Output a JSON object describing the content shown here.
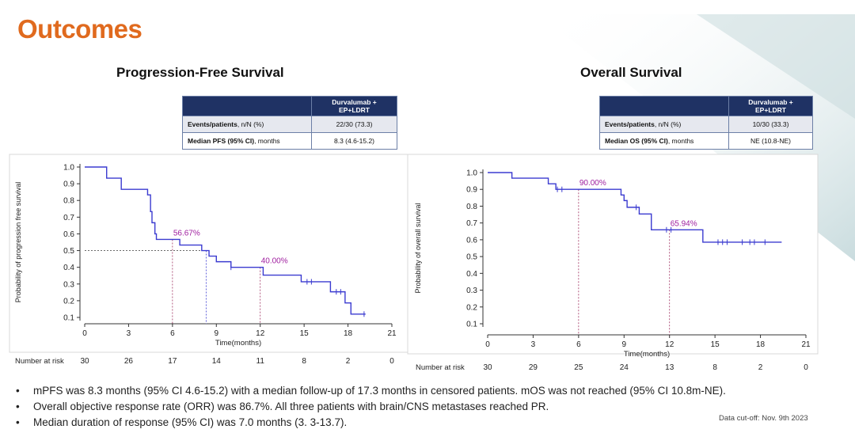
{
  "title": "Outcomes",
  "colors": {
    "accent": "#e06a1e",
    "header": "#1f3264",
    "line": "#3b3bd0",
    "label": "#a020a0"
  },
  "pfs": {
    "title": "Progression-Free Survival",
    "table": {
      "header": "Durvalumab + EP+LDRT",
      "rows": [
        {
          "label_bold": "Events/patients",
          "label_rest": ", n/N (%)",
          "value": "22/30 (73.3)"
        },
        {
          "label_bold": "Median PFS (95% CI)",
          "label_rest": ", months",
          "value": "8.3 (4.6-15.2)"
        }
      ]
    }
  },
  "os": {
    "title": "Overall Survival",
    "table": {
      "header": "Durvalumab + EP+LDRT",
      "rows": [
        {
          "label_bold": "Events/patients",
          "label_rest": ", n/N (%)",
          "value": "10/30 (33.3)"
        },
        {
          "label_bold": "Median OS (95% CI)",
          "label_rest": ", months",
          "value": "NE (10.8-NE)"
        }
      ]
    }
  },
  "chart_data": [
    {
      "type": "line",
      "name": "pfs",
      "ylabel": "Probability of progression free survival",
      "xlabel": "Time(months)",
      "xlim": [
        0,
        21
      ],
      "ylim": [
        0.1,
        1.0
      ],
      "xticks": [
        0,
        3,
        6,
        9,
        12,
        15,
        18,
        21
      ],
      "yticks": [
        1.0,
        0.9,
        0.8,
        0.7,
        0.6,
        0.5,
        0.4,
        0.3,
        0.2,
        0.1
      ],
      "ytick_labels": [
        "1.0",
        "0.9",
        "0.8",
        "0.7",
        "0.6",
        "0.5",
        "0.4",
        "0.3",
        "0.2",
        "0.1"
      ],
      "steps": [
        [
          0,
          1.0
        ],
        [
          1.5,
          0.9333
        ],
        [
          2.5,
          0.8667
        ],
        [
          4.3,
          0.8333
        ],
        [
          4.5,
          0.7333
        ],
        [
          4.6,
          0.6667
        ],
        [
          4.8,
          0.6
        ],
        [
          4.9,
          0.5667
        ],
        [
          6.5,
          0.5333
        ],
        [
          8.0,
          0.5
        ],
        [
          8.5,
          0.4667
        ],
        [
          9.0,
          0.4333
        ],
        [
          10.0,
          0.4
        ],
        [
          12.2,
          0.3533
        ],
        [
          14.8,
          0.3133
        ],
        [
          16.8,
          0.2533
        ],
        [
          17.8,
          0.1867
        ],
        [
          18.2,
          0.12
        ],
        [
          19.2,
          0.12
        ]
      ],
      "censor": [
        [
          10.0,
          0.4
        ],
        [
          15.2,
          0.3133
        ],
        [
          15.5,
          0.3133
        ],
        [
          17.2,
          0.2533
        ],
        [
          17.5,
          0.2533
        ],
        [
          19.1,
          0.12
        ]
      ],
      "annotations": [
        {
          "text": "56.67%",
          "x": 6,
          "y": 0.5667
        },
        {
          "text": "40.00%",
          "x": 12,
          "y": 0.4
        }
      ],
      "vlines": [
        6,
        8.3,
        12
      ],
      "hline": 0.5,
      "risk_label": "Number at risk",
      "at_risk": [
        "30",
        "26",
        "17",
        "14",
        "11",
        "8",
        "2",
        "0"
      ]
    },
    {
      "type": "line",
      "name": "os",
      "ylabel": "Probability of overall survival",
      "xlabel": "Time(months)",
      "xlim": [
        0,
        21
      ],
      "ylim": [
        0.1,
        1.0
      ],
      "xticks": [
        0,
        3,
        6,
        9,
        12,
        15,
        18,
        21
      ],
      "yticks": [
        1.0,
        0.9,
        0.8,
        0.7,
        0.6,
        0.5,
        0.4,
        0.3,
        0.2,
        0.1
      ],
      "ytick_labels": [
        "1.0",
        "0.9",
        "0.8",
        "0.7",
        "0.6",
        "0.5",
        "0.4",
        "0.3",
        "0.2",
        "0.1"
      ],
      "steps": [
        [
          0,
          1.0
        ],
        [
          1.6,
          0.9667
        ],
        [
          4.0,
          0.9333
        ],
        [
          4.5,
          0.9
        ],
        [
          8.8,
          0.8667
        ],
        [
          9.0,
          0.8333
        ],
        [
          9.2,
          0.7933
        ],
        [
          10.0,
          0.7533
        ],
        [
          10.8,
          0.6594
        ],
        [
          14.2,
          0.5857
        ],
        [
          19.4,
          0.5857
        ]
      ],
      "censor": [
        [
          4.6,
          0.9
        ],
        [
          4.9,
          0.9
        ],
        [
          9.8,
          0.7933
        ],
        [
          11.8,
          0.6594
        ],
        [
          12.1,
          0.6594
        ],
        [
          15.2,
          0.5857
        ],
        [
          15.5,
          0.5857
        ],
        [
          15.8,
          0.5857
        ],
        [
          16.8,
          0.5857
        ],
        [
          17.3,
          0.5857
        ],
        [
          17.6,
          0.5857
        ],
        [
          18.3,
          0.5857
        ]
      ],
      "annotations": [
        {
          "text": "90.00%",
          "x": 6,
          "y": 0.9
        },
        {
          "text": "65.94%",
          "x": 12,
          "y": 0.6594
        }
      ],
      "vlines": [
        6,
        12
      ],
      "hline": null,
      "risk_label": "Number at risk",
      "at_risk": [
        "30",
        "29",
        "25",
        "24",
        "13",
        "8",
        "2",
        "0"
      ]
    }
  ],
  "bullets": [
    "mPFS was 8.3 months (95% CI 4.6-15.2)  with a median follow-up of 17.3 months in censored patients. mOS was not reached (95% CI 10.8m-NE).",
    "Overall objective response rate (ORR) was 86.7%. All three patients with brain/CNS metastases reached PR.",
    "Median duration of response (95% CI) was 7.0 months (3. 3-13.7)."
  ],
  "bullet_char": "•",
  "cutoff": "Data cut-off: Nov. 9th 2023"
}
